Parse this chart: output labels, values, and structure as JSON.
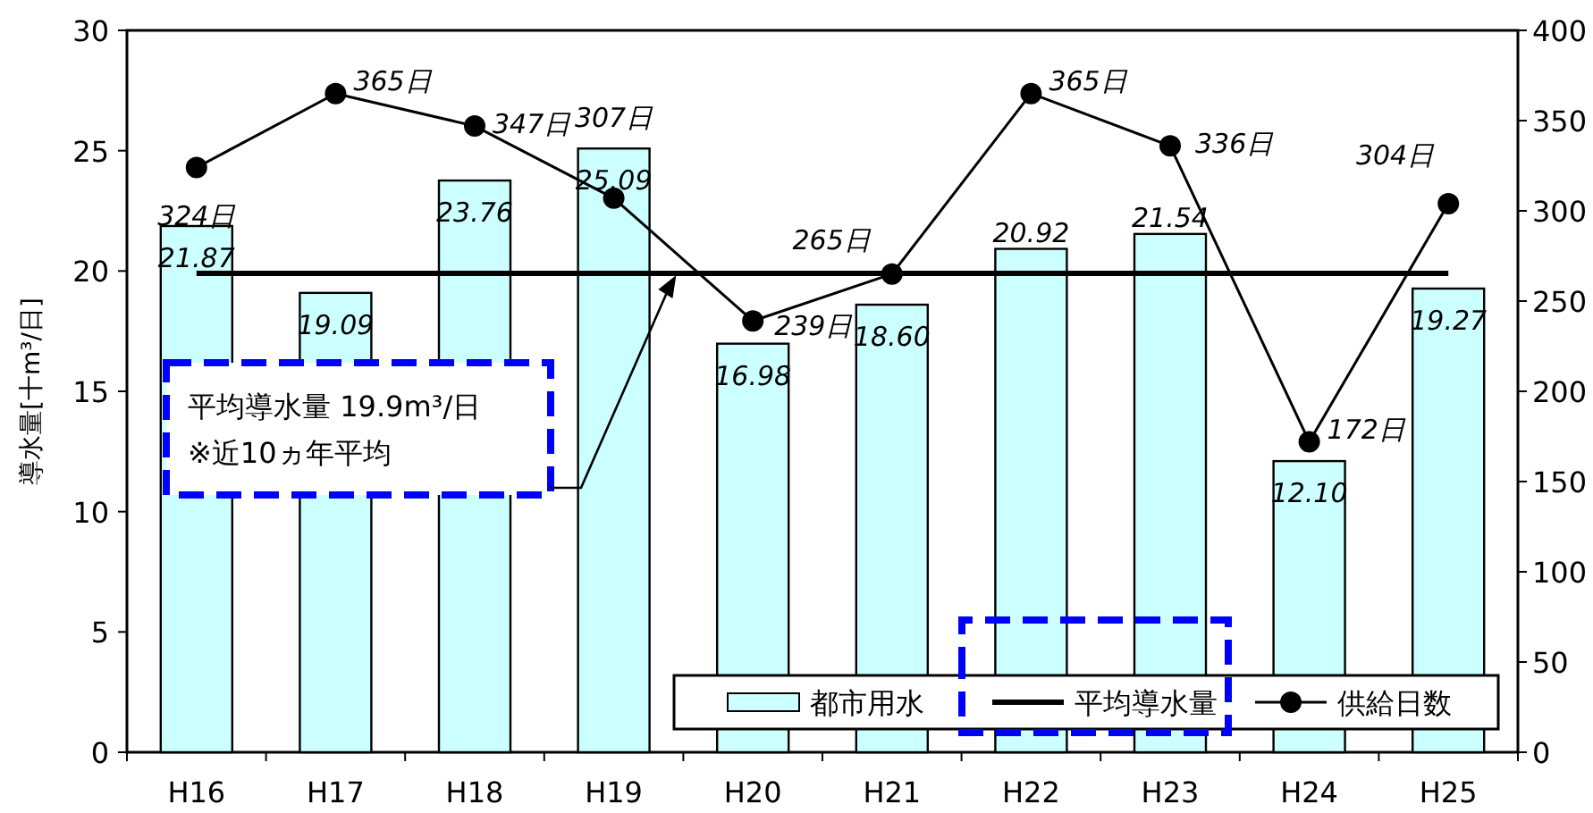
{
  "chart_data": {
    "type": "bar",
    "ylabel": "導水量[十m³/日]",
    "categories": [
      "H16",
      "H17",
      "H18",
      "H19",
      "H20",
      "H21",
      "H22",
      "H23",
      "H24",
      "H25"
    ],
    "series": [
      {
        "name": "都市用水",
        "color": "#ccffff",
        "values": [
          21.87,
          19.09,
          23.76,
          25.09,
          16.98,
          18.6,
          20.92,
          21.54,
          12.1,
          19.27
        ],
        "value_labels": [
          "21.87",
          "19.09",
          "23.76",
          "25.09",
          "16.98",
          "18.60",
          "20.92",
          "21.54",
          "12.10",
          "19.27"
        ]
      },
      {
        "name": "平均導水量",
        "type": "line",
        "color": "#000000",
        "marker": "none",
        "values": [
          19.9,
          19.9,
          19.9,
          19.9,
          19.9,
          19.9,
          19.9,
          19.9,
          19.9,
          19.9
        ]
      },
      {
        "name": "供給日数",
        "type": "line",
        "color": "#000000",
        "marker": "circle",
        "axis": "y2",
        "values": [
          324,
          365,
          347,
          307,
          239,
          265,
          365,
          336,
          172,
          304
        ],
        "value_labels": [
          "324日",
          "365日",
          "347日",
          "307日",
          "239日",
          "265日",
          "365日",
          "336日",
          "172日",
          "304日"
        ]
      }
    ],
    "ylim": [
      0,
      30
    ],
    "yticks": [
      0,
      5,
      10,
      15,
      20,
      25,
      30
    ],
    "y2lim": [
      0,
      400
    ],
    "y2ticks": [
      0,
      50,
      100,
      150,
      200,
      250,
      300,
      350,
      400
    ],
    "annotations": [
      "平均導水量 19.9m³/日\n※近10ヵ年平均"
    ],
    "legend": "bottom right",
    "grid": false
  }
}
